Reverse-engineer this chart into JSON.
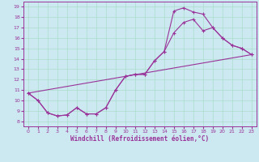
{
  "xlabel": "Windchill (Refroidissement éolien,°C)",
  "bg_color": "#cce8f0",
  "line_color": "#993399",
  "xlim": [
    -0.5,
    23.5
  ],
  "ylim": [
    7.5,
    19.5
  ],
  "xticks": [
    0,
    1,
    2,
    3,
    4,
    5,
    6,
    7,
    8,
    9,
    10,
    11,
    12,
    13,
    14,
    15,
    16,
    17,
    18,
    19,
    20,
    21,
    22,
    23
  ],
  "yticks": [
    8,
    9,
    10,
    11,
    12,
    13,
    14,
    15,
    16,
    17,
    18,
    19
  ],
  "line1_x": [
    0,
    1,
    2,
    3,
    4,
    5,
    6,
    7,
    8,
    9,
    10,
    11,
    12,
    13,
    14,
    15,
    16,
    17,
    18,
    19,
    20,
    21,
    22,
    23
  ],
  "line1_y": [
    10.7,
    10.0,
    8.8,
    8.5,
    8.6,
    9.3,
    8.7,
    8.7,
    9.3,
    11.0,
    12.3,
    12.5,
    12.5,
    13.8,
    14.7,
    18.6,
    18.9,
    18.5,
    18.3,
    17.0,
    16.0,
    15.3,
    15.0,
    14.4
  ],
  "line2_x": [
    0,
    1,
    2,
    3,
    4,
    5,
    6,
    7,
    8,
    9,
    10,
    11,
    12,
    13,
    14,
    15,
    16,
    17,
    18,
    19,
    20,
    21,
    22,
    23
  ],
  "line2_y": [
    10.7,
    10.0,
    8.8,
    8.5,
    8.6,
    9.3,
    8.7,
    8.7,
    9.3,
    11.0,
    12.3,
    12.5,
    12.5,
    13.8,
    14.7,
    16.5,
    17.5,
    17.8,
    16.7,
    17.0,
    16.0,
    15.3,
    15.0,
    14.4
  ],
  "line3_x": [
    0,
    23
  ],
  "line3_y": [
    10.7,
    14.4
  ]
}
